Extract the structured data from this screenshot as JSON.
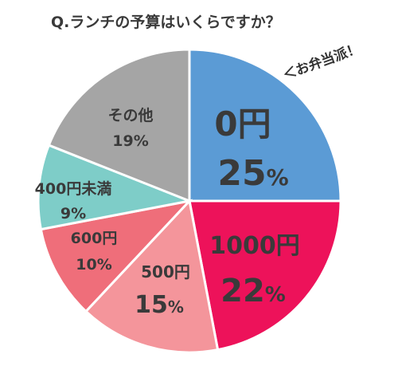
{
  "chart_data": {
    "type": "pie",
    "title": "Q.ランチの予算はいくらですか？",
    "annotation": "＜お弁当派！",
    "slices": [
      {
        "label": "0円",
        "value": 25,
        "value_text": "25",
        "unit": "%",
        "color": "#5b9bd5"
      },
      {
        "label": "1000円",
        "value": 22,
        "value_text": "22",
        "unit": "%",
        "color": "#ed125a"
      },
      {
        "label": "500円",
        "value": 15,
        "value_text": "15",
        "unit": "%",
        "color": "#f4959b"
      },
      {
        "label": "600円",
        "value": 10,
        "value_text": "10%",
        "unit": "",
        "color": "#ef6e7a"
      },
      {
        "label": "400円未満",
        "value": 9,
        "value_text": "9%",
        "unit": "",
        "color": "#7ecdc8"
      },
      {
        "label": "その他",
        "value": 19,
        "value_text": "19%",
        "unit": "",
        "color": "#a5a5a5"
      }
    ]
  }
}
